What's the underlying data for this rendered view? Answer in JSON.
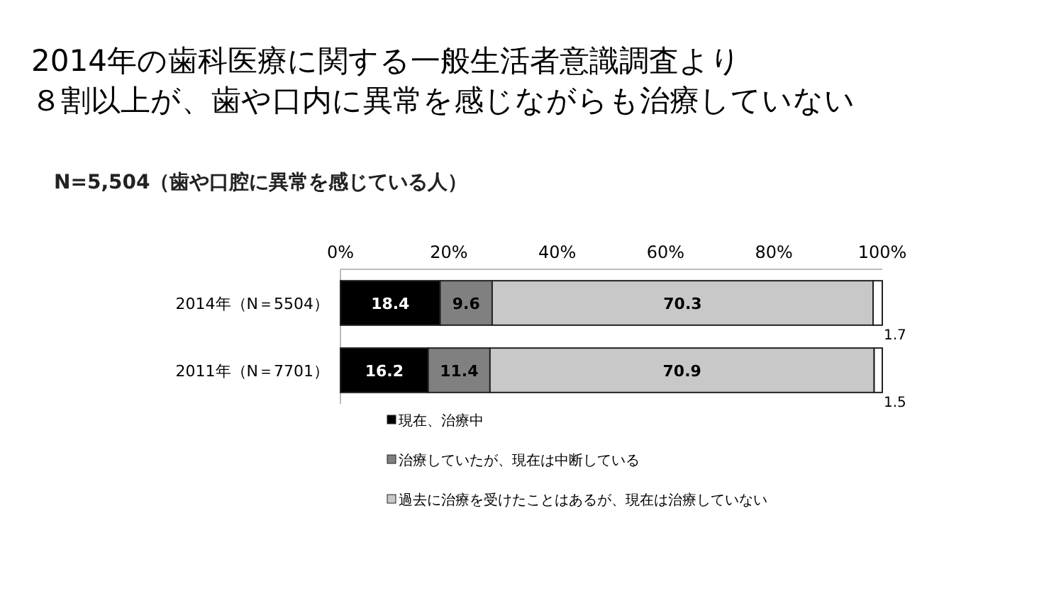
{
  "chart_data": {
    "type": "bar",
    "orientation": "horizontal",
    "stacked": true,
    "title": "2014年の歯科医療に関する一般生活者意識調査より",
    "subtitle": "８割以上が、歯や口内に異常を感じながらも治療していない",
    "annotations": [
      "N=5,504（歯や口腔に異常を感じている人）"
    ],
    "categories": [
      "2014年（N＝5504）",
      "2011年（N＝7701）"
    ],
    "series": [
      {
        "name": "現在、治療中",
        "color": "#000000",
        "values": [
          18.4,
          16.2
        ]
      },
      {
        "name": "治療していたが、現在は中断している",
        "color": "#808080",
        "values": [
          9.6,
          11.4
        ]
      },
      {
        "name": "過去に治療を受けたことはあるが、現在は治療していない",
        "color": "#c8c8c8",
        "values": [
          70.3,
          70.9
        ]
      },
      {
        "color": "#ffffff",
        "values": [
          1.7,
          1.5
        ]
      }
    ],
    "xlim": [
      0,
      100
    ],
    "xticks": [
      {
        "value": 0,
        "label": "0%"
      },
      {
        "value": 20,
        "label": "20%"
      },
      {
        "value": 40,
        "label": "40%"
      },
      {
        "value": 60,
        "label": "60%"
      },
      {
        "value": 80,
        "label": "80%"
      },
      {
        "value": 100,
        "label": "100%"
      }
    ],
    "data_labels": true,
    "legend": "bottom",
    "grid": false
  }
}
